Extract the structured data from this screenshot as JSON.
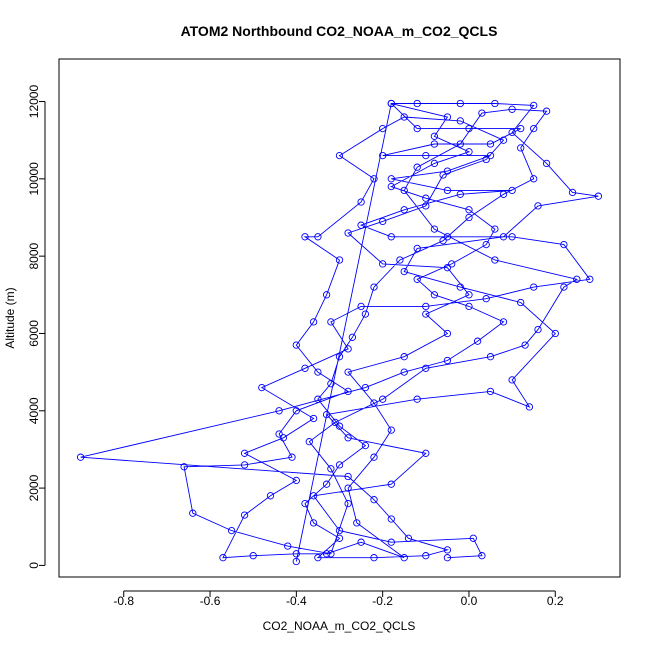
{
  "chart_data": {
    "type": "scatter",
    "title": "ATOM2 Northbound CO2_NOAA_m_CO2_QCLS",
    "xlabel": "CO2_NOAA_m_CO2_QCLS",
    "ylabel": "Altitude (m)",
    "xlim": [
      -0.95,
      0.35
    ],
    "ylim": [
      -300,
      13100
    ],
    "xticks": [
      -0.8,
      -0.6,
      -0.4,
      -0.2,
      0.0,
      0.2
    ],
    "xtick_labels": [
      "-0.8",
      "-0.6",
      "-0.4",
      "-0.2",
      "0.0",
      "0.2"
    ],
    "yticks": [
      0,
      2000,
      4000,
      6000,
      8000,
      10000,
      12000
    ],
    "ytick_labels": [
      "0",
      "2000",
      "4000",
      "6000",
      "8000",
      "10000",
      "12000"
    ],
    "series": [
      {
        "name": "profile",
        "color": "#0000ff",
        "points": [
          [
            -0.05,
            200
          ],
          [
            0.03,
            250
          ],
          [
            0.01,
            700
          ],
          [
            -0.18,
            600
          ],
          [
            -0.3,
            900
          ],
          [
            -0.36,
            1800
          ],
          [
            -0.18,
            2100
          ],
          [
            -0.1,
            2900
          ],
          [
            -0.28,
            3300
          ],
          [
            -0.33,
            3900
          ],
          [
            -0.12,
            4300
          ],
          [
            0.05,
            4500
          ],
          [
            0.14,
            4100
          ],
          [
            0.1,
            4800
          ],
          [
            0.2,
            6000
          ],
          [
            0.12,
            6800
          ],
          [
            -0.02,
            7200
          ],
          [
            -0.15,
            7600
          ],
          [
            -0.12,
            8200
          ],
          [
            0.08,
            8500
          ],
          [
            0.16,
            9300
          ],
          [
            0.3,
            9550
          ],
          [
            0.24,
            9650
          ],
          [
            0.18,
            10400
          ],
          [
            0.1,
            11200
          ],
          [
            0.15,
            11900
          ],
          [
            0.06,
            11950
          ],
          [
            -0.02,
            11950
          ],
          [
            -0.12,
            11950
          ],
          [
            -0.18,
            11950
          ],
          [
            -0.12,
            11300
          ],
          [
            0.0,
            11300
          ],
          [
            0.12,
            11300
          ],
          [
            0.05,
            10900
          ],
          [
            -0.08,
            10900
          ],
          [
            -0.2,
            10600
          ],
          [
            -0.1,
            10600
          ],
          [
            0.05,
            10600
          ],
          [
            -0.05,
            10200
          ],
          [
            -0.18,
            10000
          ],
          [
            -0.05,
            9700
          ],
          [
            0.1,
            9700
          ],
          [
            -0.02,
            9600
          ],
          [
            -0.15,
            9200
          ],
          [
            -0.25,
            8800
          ],
          [
            -0.18,
            8500
          ],
          [
            -0.05,
            8500
          ],
          [
            0.1,
            8500
          ],
          [
            0.22,
            8300
          ],
          [
            0.28,
            7400
          ],
          [
            0.15,
            7200
          ],
          [
            0.04,
            6900
          ],
          [
            -0.1,
            6700
          ],
          [
            -0.25,
            6700
          ],
          [
            -0.32,
            6300
          ],
          [
            -0.28,
            5600
          ],
          [
            -0.38,
            5100
          ],
          [
            -0.48,
            4600
          ],
          [
            -0.36,
            3800
          ],
          [
            -0.43,
            3300
          ],
          [
            -0.52,
            2900
          ],
          [
            -0.4,
            2200
          ],
          [
            -0.46,
            1800
          ],
          [
            -0.52,
            1300
          ],
          [
            -0.57,
            200
          ],
          [
            -0.5,
            250
          ],
          [
            -0.4,
            300
          ],
          [
            -0.33,
            300
          ],
          [
            -0.25,
            600
          ],
          [
            -0.15,
            200
          ],
          [
            -0.26,
            1100
          ],
          [
            -0.28,
            2000
          ],
          [
            -0.22,
            2800
          ],
          [
            -0.18,
            3500
          ],
          [
            -0.22,
            4200
          ],
          [
            -0.28,
            5000
          ],
          [
            -0.15,
            5400
          ],
          [
            -0.05,
            6000
          ],
          [
            -0.1,
            6500
          ],
          [
            0.0,
            7000
          ],
          [
            -0.05,
            7700
          ],
          [
            -0.2,
            7800
          ],
          [
            -0.28,
            8600
          ],
          [
            -0.2,
            8900
          ],
          [
            -0.1,
            9300
          ],
          [
            -0.06,
            10100
          ],
          [
            0.04,
            10500
          ],
          [
            0.08,
            11000
          ],
          [
            -0.02,
            11500
          ],
          [
            -0.15,
            11600
          ],
          [
            -0.2,
            11300
          ],
          [
            -0.3,
            10600
          ],
          [
            -0.22,
            10000
          ],
          [
            -0.25,
            9400
          ],
          [
            -0.35,
            8500
          ],
          [
            -0.38,
            8500
          ],
          [
            -0.3,
            7900
          ],
          [
            -0.33,
            7000
          ],
          [
            -0.36,
            6300
          ],
          [
            -0.4,
            5700
          ],
          [
            -0.35,
            5000
          ],
          [
            -0.28,
            4500
          ],
          [
            -0.4,
            4000
          ],
          [
            -0.44,
            3400
          ],
          [
            -0.41,
            2800
          ],
          [
            -0.52,
            2600
          ],
          [
            -0.66,
            2550
          ],
          [
            -0.64,
            1350
          ],
          [
            -0.55,
            900
          ],
          [
            -0.42,
            500
          ],
          [
            -0.32,
            300
          ],
          [
            -0.28,
            1600
          ],
          [
            -0.32,
            2500
          ],
          [
            -0.37,
            3200
          ],
          [
            -0.31,
            3700
          ],
          [
            -0.2,
            4300
          ],
          [
            -0.1,
            5100
          ],
          [
            0.05,
            5400
          ],
          [
            0.13,
            5700
          ],
          [
            0.16,
            6100
          ],
          [
            0.22,
            7200
          ],
          [
            0.25,
            7400
          ],
          [
            0.06,
            7900
          ],
          [
            -0.08,
            8700
          ],
          [
            -0.15,
            9700
          ],
          [
            -0.12,
            10300
          ],
          [
            -0.02,
            10900
          ],
          [
            0.03,
            11700
          ],
          [
            0.1,
            11800
          ],
          [
            0.18,
            11750
          ],
          [
            0.15,
            11300
          ],
          [
            0.12,
            10800
          ],
          [
            0.15,
            10000
          ],
          [
            0.08,
            9600
          ],
          [
            0.0,
            9000
          ],
          [
            -0.06,
            8400
          ],
          [
            -0.16,
            7900
          ],
          [
            -0.22,
            7200
          ],
          [
            -0.24,
            6500
          ],
          [
            -0.27,
            5900
          ],
          [
            -0.3,
            5400
          ],
          [
            -0.32,
            4700
          ],
          [
            -0.35,
            4300
          ],
          [
            -0.3,
            3600
          ],
          [
            -0.24,
            3100
          ],
          [
            -0.3,
            2600
          ],
          [
            -0.33,
            2100
          ],
          [
            -0.38,
            1600
          ],
          [
            -0.36,
            1100
          ],
          [
            -0.3,
            700
          ],
          [
            -0.35,
            200
          ],
          [
            -0.22,
            200
          ],
          [
            -0.1,
            250
          ],
          [
            -0.05,
            400
          ],
          [
            -0.14,
            700
          ],
          [
            -0.18,
            1200
          ],
          [
            -0.22,
            1700
          ],
          [
            -0.28,
            2300
          ],
          [
            -0.9,
            2800
          ],
          [
            -0.44,
            4000
          ],
          [
            -0.24,
            4600
          ],
          [
            -0.15,
            5000
          ],
          [
            -0.05,
            5300
          ],
          [
            0.02,
            5800
          ],
          [
            0.08,
            6300
          ],
          [
            0.0,
            6700
          ],
          [
            -0.08,
            7000
          ],
          [
            -0.12,
            7400
          ],
          [
            -0.04,
            7800
          ],
          [
            0.04,
            8300
          ],
          [
            0.06,
            8700
          ],
          [
            0.0,
            9200
          ],
          [
            -0.1,
            9500
          ],
          [
            -0.18,
            9800
          ],
          [
            -0.08,
            10400
          ],
          [
            0.0,
            10700
          ],
          [
            -0.08,
            11100
          ],
          [
            -0.05,
            11600
          ],
          [
            -0.18,
            11950
          ],
          [
            -0.4,
            100
          ]
        ]
      }
    ]
  }
}
